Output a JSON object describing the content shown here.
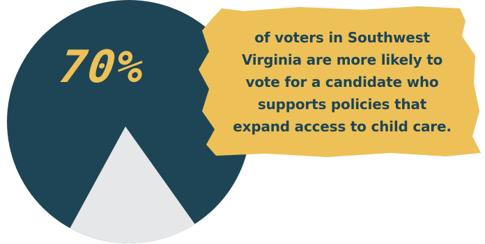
{
  "colors": {
    "accent_yellow": "#EDC158",
    "dark_teal": "#1E4555",
    "light_gray": "#E6E7E8",
    "text_dark": "#1E4555"
  },
  "chart_data": {
    "type": "pie",
    "slices": [
      {
        "value": 70,
        "color": "#1E4555"
      },
      {
        "value": 30,
        "color": "#E6E7E8"
      }
    ]
  },
  "headline": {
    "stat": "70%"
  },
  "caption": {
    "lines": [
      "of voters in Southwest",
      "Virginia are more likely to",
      "vote for a candidate who",
      "supports policies that",
      "expand access to child care."
    ]
  }
}
